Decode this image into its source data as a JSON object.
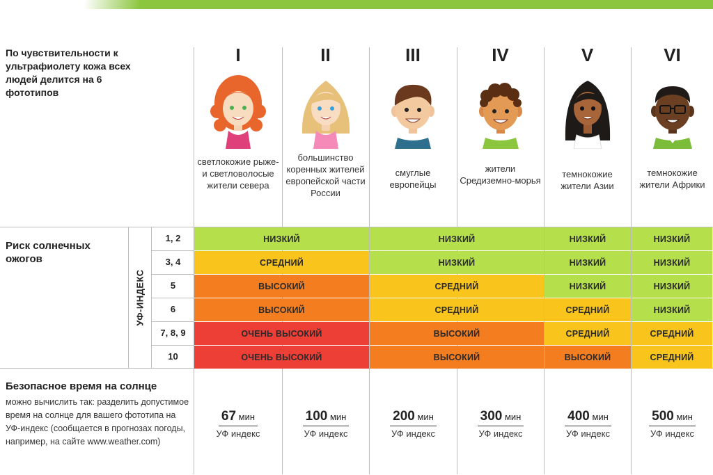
{
  "intro": "По чувствительности к ультрафиолету кожа всех людей делится на 6 фототипов",
  "phototypes": [
    {
      "numeral": "I",
      "description": "светлокожие рыже- и светловолосые жители севера"
    },
    {
      "numeral": "II",
      "description": "большинство коренных жителей европейской части России"
    },
    {
      "numeral": "III",
      "description": "смуглые европейцы"
    },
    {
      "numeral": "IV",
      "description": "жители Средиземно-морья"
    },
    {
      "numeral": "V",
      "description": "темнокожие жители Азии"
    },
    {
      "numeral": "VI",
      "description": "темнокожие жители Африки"
    }
  ],
  "risk_section": {
    "title": "Риск солнечных ожогов",
    "uv_axis_label": "УФ-ИНДЕКС",
    "uv_levels": [
      "1, 2",
      "3, 4",
      "5",
      "6",
      "7, 8, 9",
      "10"
    ],
    "rows": [
      [
        "НИЗКИЙ",
        "НИЗКИЙ",
        "НИЗКИЙ",
        "НИЗКИЙ",
        "НИЗКИЙ",
        "НИЗКИЙ"
      ],
      [
        "СРЕДНИЙ",
        "СРЕДНИЙ",
        "НИЗКИЙ",
        "НИЗКИЙ",
        "НИЗКИЙ",
        "НИЗКИЙ"
      ],
      [
        "ВЫСОКИЙ",
        "ВЫСОКИЙ",
        "СРЕДНИЙ",
        "СРЕДНИЙ",
        "НИЗКИЙ",
        "НИЗКИЙ"
      ],
      [
        "ВЫСОКИЙ",
        "ВЫСОКИЙ",
        "СРЕДНИЙ",
        "СРЕДНИЙ",
        "СРЕДНИЙ",
        "НИЗКИЙ"
      ],
      [
        "ОЧЕНЬ ВЫСОКИЙ",
        "ОЧЕНЬ ВЫСОКИЙ",
        "ВЫСОКИЙ",
        "ВЫСОКИЙ",
        "СРЕДНИЙ",
        "СРЕДНИЙ"
      ],
      [
        "ОЧЕНЬ ВЫСОКИЙ",
        "ОЧЕНЬ ВЫСОКИЙ",
        "ВЫСОКИЙ",
        "ВЫСОКИЙ",
        "ВЫСОКИЙ",
        "СРЕДНИЙ"
      ]
    ],
    "risk_colors": {
      "НИЗКИЙ": "#b5e04b",
      "СРЕДНИЙ": "#f9c41c",
      "ВЫСОКИЙ": "#f47d20",
      "ОЧЕНЬ ВЫСОКИЙ": "#ee3f37"
    }
  },
  "safe_time": {
    "title": "Безопасное время на солнце",
    "description": "можно вычислить так: разделить допустимое время на солнце для вашего фототипа на УФ-индекс (сообщается в прогнозах погоды, например, на сайте www.weather.com)",
    "unit": "мин",
    "denominator": "УФ индекс",
    "values": [
      "67",
      "100",
      "200",
      "300",
      "400",
      "500"
    ]
  },
  "colors": {
    "accent_bar": "#8cc63f",
    "divider": "#bdbdbd"
  }
}
